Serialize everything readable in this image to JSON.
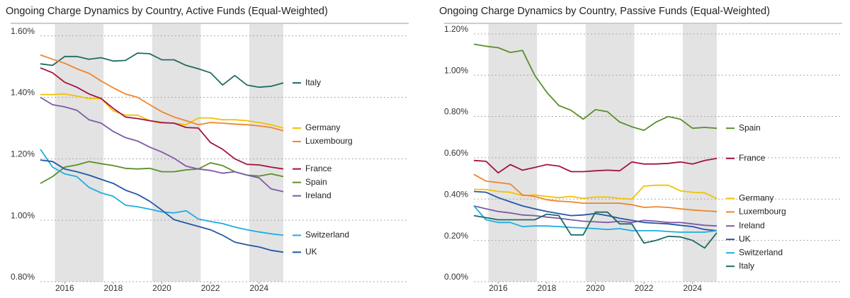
{
  "chart_data": [
    {
      "type": "line",
      "title": "Ongoing Charge Dynamics by Country, Active Funds (Equal-Weighted)",
      "x": [
        2015,
        2015.5,
        2016,
        2016.5,
        2017,
        2017.5,
        2018,
        2018.5,
        2019,
        2019.5,
        2020,
        2020.5,
        2021,
        2021.5,
        2022,
        2022.5,
        2023,
        2023.5,
        2024,
        2024.5,
        2025
      ],
      "xlim": [
        2015,
        2025
      ],
      "xticks": [
        2016,
        2018,
        2020,
        2022,
        2024
      ],
      "ylim": [
        0.8,
        1.62
      ],
      "yticks": [
        {
          "value": 0.8,
          "label": "0.80%"
        },
        {
          "value": 1.0,
          "label": "1.00%"
        },
        {
          "value": 1.2,
          "label": "1.20%"
        },
        {
          "value": 1.4,
          "label": "1.40%"
        },
        {
          "value": 1.6,
          "label": "1.60%"
        }
      ],
      "grid": true,
      "shaded_ranges": [
        [
          2015.6,
          2017.6
        ],
        [
          2019.6,
          2021.6
        ],
        [
          2023.6,
          2025
        ]
      ],
      "series": [
        {
          "name": "Italy",
          "color": "#1d6b63",
          "values": [
            1.509,
            1.504,
            1.533,
            1.533,
            1.524,
            1.529,
            1.518,
            1.52,
            1.544,
            1.542,
            1.522,
            1.522,
            1.504,
            1.493,
            1.48,
            1.44,
            1.471,
            1.44,
            1.433,
            1.436,
            1.447
          ]
        },
        {
          "name": "Germany",
          "color": "#f2c200",
          "values": [
            1.409,
            1.409,
            1.411,
            1.404,
            1.396,
            1.396,
            1.356,
            1.342,
            1.342,
            1.324,
            1.316,
            1.316,
            1.311,
            1.333,
            1.333,
            1.327,
            1.327,
            1.324,
            1.318,
            1.311,
            1.3
          ]
        },
        {
          "name": "Luxembourg",
          "color": "#f0842c",
          "values": [
            1.538,
            1.524,
            1.511,
            1.493,
            1.478,
            1.453,
            1.431,
            1.411,
            1.4,
            1.376,
            1.353,
            1.336,
            1.324,
            1.311,
            1.318,
            1.316,
            1.313,
            1.311,
            1.307,
            1.302,
            1.291
          ]
        },
        {
          "name": "France",
          "color": "#a3133f",
          "values": [
            1.496,
            1.48,
            1.449,
            1.433,
            1.411,
            1.396,
            1.364,
            1.336,
            1.331,
            1.324,
            1.318,
            1.316,
            1.302,
            1.3,
            1.253,
            1.231,
            1.2,
            1.182,
            1.18,
            1.173,
            1.167
          ]
        },
        {
          "name": "Spain",
          "color": "#5a8f2b",
          "values": [
            1.12,
            1.142,
            1.173,
            1.18,
            1.191,
            1.184,
            1.178,
            1.169,
            1.167,
            1.169,
            1.158,
            1.158,
            1.164,
            1.167,
            1.187,
            1.178,
            1.158,
            1.147,
            1.144,
            1.151,
            1.142
          ]
        },
        {
          "name": "Ireland",
          "color": "#7d5aa6",
          "values": [
            1.4,
            1.376,
            1.369,
            1.358,
            1.327,
            1.316,
            1.289,
            1.269,
            1.258,
            1.238,
            1.222,
            1.202,
            1.176,
            1.167,
            1.162,
            1.153,
            1.158,
            1.147,
            1.138,
            1.102,
            1.093
          ]
        },
        {
          "name": "Switzerland",
          "color": "#1eaee0",
          "values": [
            1.231,
            1.173,
            1.151,
            1.142,
            1.107,
            1.089,
            1.078,
            1.049,
            1.044,
            1.036,
            1.027,
            1.024,
            1.031,
            1.004,
            0.996,
            0.989,
            0.978,
            0.969,
            0.962,
            0.956,
            0.951
          ]
        },
        {
          "name": "UK",
          "color": "#2457a6",
          "values": [
            1.196,
            1.191,
            1.167,
            1.158,
            1.147,
            1.133,
            1.12,
            1.098,
            1.084,
            1.062,
            1.033,
            1.002,
            0.991,
            0.98,
            0.969,
            0.951,
            0.929,
            0.92,
            0.913,
            0.902,
            0.896
          ]
        }
      ]
    },
    {
      "type": "line",
      "title": "Ongoing Charge Dynamics by Country, Passive Funds (Equal-Weighted)",
      "x": [
        2015,
        2015.5,
        2016,
        2016.5,
        2017,
        2017.5,
        2018,
        2018.5,
        2019,
        2019.5,
        2020,
        2020.5,
        2021,
        2021.5,
        2022,
        2022.5,
        2023,
        2023.5,
        2024,
        2024.5,
        2025
      ],
      "xlim": [
        2015,
        2025
      ],
      "xticks": [
        2016,
        2018,
        2020,
        2022,
        2024
      ],
      "ylim": [
        0,
        1.22
      ],
      "yticks": [
        {
          "value": 0,
          "label": "0.00%"
        },
        {
          "value": 0.2,
          "label": "0.20%"
        },
        {
          "value": 0.4,
          "label": "0.40%"
        },
        {
          "value": 0.6,
          "label": "0.60%"
        },
        {
          "value": 0.8,
          "label": "0.80%"
        },
        {
          "value": 1.0,
          "label": "1.00%"
        },
        {
          "value": 1.2,
          "label": "1.20%"
        }
      ],
      "grid": true,
      "shaded_ranges": [
        [
          2015.6,
          2017.6
        ],
        [
          2019.6,
          2021.6
        ],
        [
          2023.6,
          2025
        ]
      ],
      "series": [
        {
          "name": "Spain",
          "color": "#5a8f2b",
          "values": [
            1.15,
            1.14,
            1.133,
            1.11,
            1.12,
            1.0,
            0.917,
            0.853,
            0.83,
            0.787,
            0.833,
            0.823,
            0.773,
            0.75,
            0.733,
            0.773,
            0.8,
            0.787,
            0.743,
            0.747,
            0.743
          ]
        },
        {
          "name": "France",
          "color": "#a3133f",
          "values": [
            0.587,
            0.583,
            0.527,
            0.567,
            0.54,
            0.553,
            0.567,
            0.56,
            0.533,
            0.533,
            0.537,
            0.54,
            0.537,
            0.58,
            0.57,
            0.57,
            0.573,
            0.58,
            0.57,
            0.587,
            0.597
          ]
        },
        {
          "name": "Germany",
          "color": "#f2c200",
          "values": [
            0.447,
            0.447,
            0.437,
            0.433,
            0.417,
            0.42,
            0.413,
            0.407,
            0.413,
            0.403,
            0.41,
            0.41,
            0.403,
            0.4,
            0.463,
            0.467,
            0.467,
            0.44,
            0.433,
            0.43,
            0.403
          ]
        },
        {
          "name": "Luxembourg",
          "color": "#f0842c",
          "values": [
            0.52,
            0.487,
            0.48,
            0.473,
            0.42,
            0.413,
            0.397,
            0.39,
            0.387,
            0.38,
            0.38,
            0.38,
            0.38,
            0.373,
            0.36,
            0.363,
            0.36,
            0.353,
            0.347,
            0.343,
            0.34
          ]
        },
        {
          "name": "Ireland",
          "color": "#7d5aa6",
          "values": [
            0.367,
            0.353,
            0.34,
            0.333,
            0.323,
            0.32,
            0.313,
            0.307,
            0.3,
            0.293,
            0.29,
            0.287,
            0.293,
            0.287,
            0.297,
            0.293,
            0.287,
            0.287,
            0.28,
            0.273,
            0.27
          ]
        },
        {
          "name": "UK",
          "color": "#2457a6",
          "values": [
            0.437,
            0.433,
            0.407,
            0.387,
            0.367,
            0.353,
            0.34,
            0.33,
            0.32,
            0.323,
            0.33,
            0.32,
            0.307,
            0.297,
            0.287,
            0.283,
            0.28,
            0.273,
            0.267,
            0.253,
            0.247
          ]
        },
        {
          "name": "Switzerland",
          "color": "#1eaee0",
          "values": [
            0.367,
            0.3,
            0.287,
            0.287,
            0.267,
            0.27,
            0.27,
            0.267,
            0.263,
            0.26,
            0.257,
            0.253,
            0.257,
            0.247,
            0.247,
            0.247,
            0.243,
            0.24,
            0.24,
            0.24,
            0.247
          ]
        },
        {
          "name": "Italy",
          "color": "#1d6b63",
          "values": [
            0.32,
            0.31,
            0.3,
            0.3,
            0.3,
            0.3,
            0.327,
            0.32,
            0.227,
            0.227,
            0.337,
            0.337,
            0.28,
            0.28,
            0.187,
            0.2,
            0.22,
            0.217,
            0.2,
            0.163,
            0.237
          ]
        }
      ]
    }
  ]
}
